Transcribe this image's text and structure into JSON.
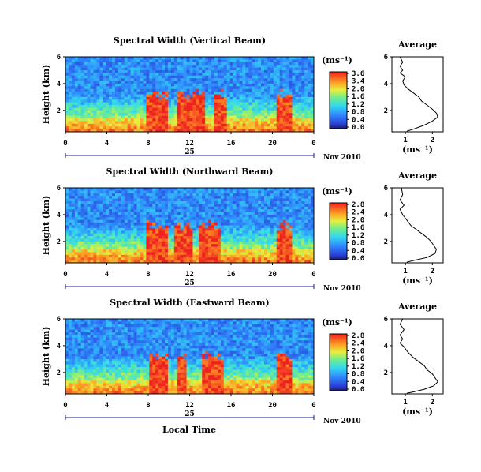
{
  "figure": {
    "xaxis_label": "Local Time",
    "date_label": "Nov 2010",
    "day_label": "25"
  },
  "chart_data": [
    {
      "type": "heatmap",
      "title": "Spectral Width (Vertical Beam)",
      "ylabel": "Height (km)",
      "x_ticks": [
        "0",
        "4",
        "8",
        "12",
        "16",
        "20",
        "0"
      ],
      "xlim_hours": [
        0,
        24
      ],
      "y_ticks": [
        "6",
        "4",
        "2"
      ],
      "ylim_km": [
        0.4,
        6.0
      ],
      "colorbar": {
        "unit": "(ms⁻¹)",
        "ticks": [
          "3.6",
          "3.4",
          "2.0",
          "1.6",
          "1.2",
          "0.8",
          "0.4",
          "0.0"
        ],
        "range": [
          0,
          3.6
        ]
      },
      "hot_zones_hours": [
        [
          7.8,
          9.8
        ],
        [
          10.8,
          13.5
        ],
        [
          14.5,
          15.6
        ],
        [
          20.5,
          22.0
        ]
      ],
      "profile": {
        "title": "Average",
        "xlabel": "(ms⁻¹)",
        "x_ticks": [
          "1",
          "2"
        ],
        "xlim": [
          0.5,
          2.4
        ],
        "y_ticks": [
          "6",
          "4",
          "2"
        ],
        "ylim": [
          0.4,
          6.0
        ],
        "points": [
          [
            0.8,
            6.0
          ],
          [
            0.9,
            5.6
          ],
          [
            0.8,
            5.3
          ],
          [
            0.9,
            5.0
          ],
          [
            0.8,
            4.8
          ],
          [
            1.0,
            4.5
          ],
          [
            0.9,
            4.2
          ],
          [
            0.95,
            3.9
          ],
          [
            1.1,
            3.6
          ],
          [
            1.3,
            3.3
          ],
          [
            1.5,
            3.0
          ],
          [
            1.6,
            2.7
          ],
          [
            1.8,
            2.4
          ],
          [
            2.0,
            2.1
          ],
          [
            2.15,
            1.8
          ],
          [
            2.2,
            1.5
          ],
          [
            2.0,
            1.2
          ],
          [
            1.7,
            0.9
          ],
          [
            1.3,
            0.6
          ],
          [
            1.05,
            0.45
          ]
        ]
      }
    },
    {
      "type": "heatmap",
      "title": "Spectral Width (Northward Beam)",
      "ylabel": "Height (km)",
      "x_ticks": [
        "0",
        "4",
        "8",
        "12",
        "16",
        "20",
        "0"
      ],
      "xlim_hours": [
        0,
        24
      ],
      "y_ticks": [
        "6",
        "4",
        "2"
      ],
      "ylim_km": [
        0.4,
        6.0
      ],
      "colorbar": {
        "unit": "(ms⁻¹)",
        "ticks": [
          "2.8",
          "2.4",
          "2.0",
          "1.6",
          "1.2",
          "0.8",
          "0.4",
          "0.0"
        ],
        "range": [
          0,
          2.8
        ]
      },
      "hot_zones_hours": [
        [
          7.8,
          9.8
        ],
        [
          10.6,
          12.2
        ],
        [
          13.0,
          15.0
        ],
        [
          20.3,
          22.0
        ]
      ],
      "profile": {
        "title": "Average",
        "xlabel": "(ms⁻¹)",
        "x_ticks": [
          "1",
          "2"
        ],
        "xlim": [
          0.5,
          2.4
        ],
        "y_ticks": [
          "6",
          "4",
          "2"
        ],
        "ylim": [
          0.4,
          6.0
        ],
        "points": [
          [
            0.85,
            6.0
          ],
          [
            0.9,
            5.5
          ],
          [
            0.8,
            5.1
          ],
          [
            0.95,
            4.7
          ],
          [
            0.8,
            4.4
          ],
          [
            0.9,
            4.0
          ],
          [
            1.05,
            3.6
          ],
          [
            1.2,
            3.2
          ],
          [
            1.4,
            2.9
          ],
          [
            1.6,
            2.6
          ],
          [
            1.8,
            2.3
          ],
          [
            1.95,
            2.0
          ],
          [
            2.05,
            1.7
          ],
          [
            2.15,
            1.4
          ],
          [
            2.1,
            1.1
          ],
          [
            1.8,
            0.8
          ],
          [
            1.35,
            0.6
          ],
          [
            1.05,
            0.45
          ]
        ]
      }
    },
    {
      "type": "heatmap",
      "title": "Spectral Width (Eastward Beam)",
      "ylabel": "Height (km)",
      "x_ticks": [
        "0",
        "4",
        "8",
        "12",
        "16",
        "20",
        "0"
      ],
      "xlim_hours": [
        0,
        24
      ],
      "y_ticks": [
        "6",
        "4",
        "2"
      ],
      "ylim_km": [
        0.4,
        6.0
      ],
      "colorbar": {
        "unit": "(ms⁻¹)",
        "ticks": [
          "2.8",
          "2.4",
          "2.0",
          "1.6",
          "1.2",
          "0.8",
          "0.4",
          "0.0"
        ],
        "range": [
          0,
          2.8
        ]
      },
      "hot_zones_hours": [
        [
          8.0,
          10.0
        ],
        [
          10.8,
          11.6
        ],
        [
          13.2,
          15.2
        ],
        [
          20.3,
          22.0
        ]
      ],
      "profile": {
        "title": "Average",
        "xlabel": "(ms⁻¹)",
        "x_ticks": [
          "1",
          "2"
        ],
        "xlim": [
          0.5,
          2.4
        ],
        "y_ticks": [
          "6",
          "4",
          "2"
        ],
        "ylim": [
          0.4,
          6.0
        ],
        "points": [
          [
            0.9,
            6.0
          ],
          [
            0.8,
            5.6
          ],
          [
            0.95,
            5.2
          ],
          [
            0.8,
            4.8
          ],
          [
            0.9,
            4.5
          ],
          [
            0.8,
            4.2
          ],
          [
            0.95,
            3.9
          ],
          [
            1.1,
            3.5
          ],
          [
            1.3,
            3.1
          ],
          [
            1.5,
            2.8
          ],
          [
            1.7,
            2.5
          ],
          [
            1.8,
            2.2
          ],
          [
            2.0,
            1.9
          ],
          [
            2.1,
            1.6
          ],
          [
            2.2,
            1.3
          ],
          [
            2.05,
            1.0
          ],
          [
            1.7,
            0.75
          ],
          [
            1.3,
            0.55
          ],
          [
            1.05,
            0.45
          ]
        ]
      }
    }
  ]
}
